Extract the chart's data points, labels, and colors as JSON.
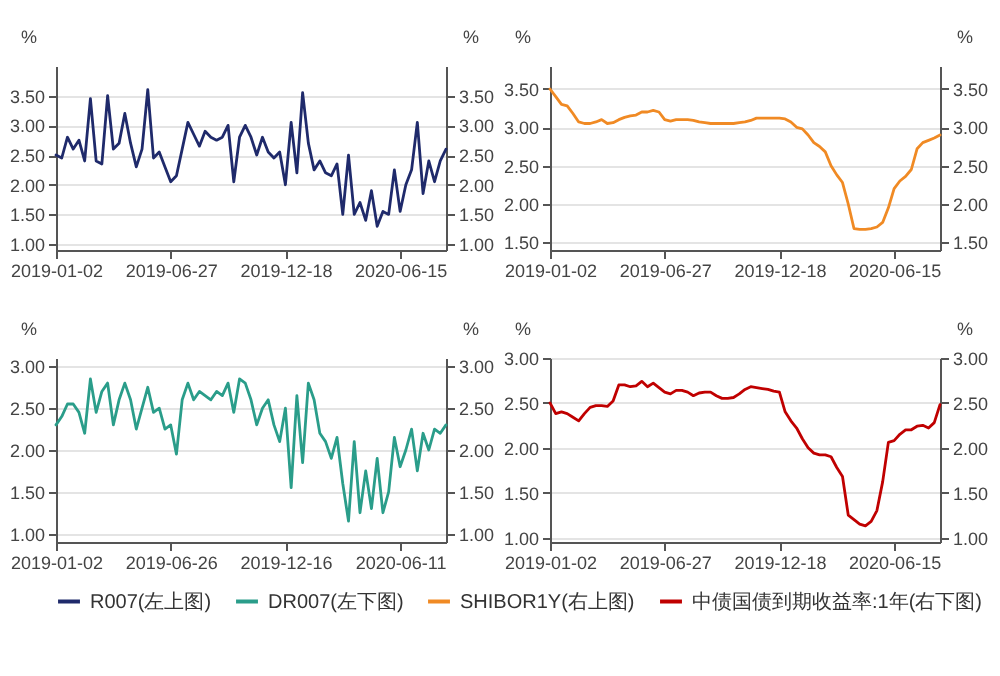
{
  "chart_data": [
    {
      "type": "line",
      "categories": [
        "2019-01-02",
        null,
        null,
        null,
        null,
        null,
        null,
        null,
        null,
        null,
        null,
        null,
        null,
        null,
        null,
        null,
        null,
        null,
        null,
        null,
        "2019-06-27",
        null,
        null,
        null,
        null,
        null,
        null,
        null,
        null,
        null,
        null,
        null,
        null,
        null,
        null,
        null,
        null,
        null,
        null,
        null,
        "2019-12-18",
        null,
        null,
        null,
        null,
        null,
        null,
        null,
        null,
        null,
        null,
        null,
        null,
        null,
        null,
        null,
        null,
        null,
        null,
        null,
        "2020-06-15",
        null,
        null,
        null,
        null,
        null,
        null,
        null,
        null
      ],
      "series": [
        {
          "name": "R007(左上图)",
          "color": "#1f2a6b",
          "values": [
            2.5,
            2.45,
            2.8,
            2.6,
            2.75,
            2.4,
            3.45,
            2.4,
            2.35,
            3.5,
            2.6,
            2.7,
            3.2,
            2.7,
            2.3,
            2.6,
            3.6,
            2.45,
            2.55,
            2.3,
            2.05,
            2.15,
            2.6,
            3.05,
            2.85,
            2.65,
            2.9,
            2.8,
            2.75,
            2.8,
            3.0,
            2.05,
            2.8,
            3.0,
            2.8,
            2.5,
            2.8,
            2.55,
            2.45,
            2.55,
            2.0,
            3.05,
            2.2,
            3.55,
            2.7,
            2.25,
            2.4,
            2.2,
            2.15,
            2.35,
            1.5,
            2.5,
            1.5,
            1.7,
            1.4,
            1.9,
            1.3,
            1.55,
            1.5,
            2.25,
            1.55,
            2.0,
            2.25,
            3.05,
            1.85,
            2.4,
            2.05,
            2.4,
            2.6
          ]
        }
      ],
      "ylabel": "%",
      "y2label": "%",
      "ylim": [
        0.9,
        4.0
      ],
      "yticks": [
        {
          "value": 1,
          "label": "1.00"
        },
        {
          "value": 1.5,
          "label": "1.50"
        },
        {
          "value": 2,
          "label": "2.00"
        },
        {
          "value": 2.5,
          "label": "2.50"
        },
        {
          "value": 3,
          "label": "3.00"
        },
        {
          "value": 3.5,
          "label": "3.50"
        }
      ],
      "y2lim": [
        0.9,
        4.0
      ],
      "y2ticks": [
        {
          "value": 1,
          "label": "1.00"
        },
        {
          "value": 1.5,
          "label": "1.50"
        },
        {
          "value": 2,
          "label": "2.00"
        },
        {
          "value": 2.5,
          "label": "2.50"
        },
        {
          "value": 3,
          "label": "3.00"
        },
        {
          "value": 3.5,
          "label": "3.50"
        }
      ],
      "grid": "y",
      "legend": "bottom"
    },
    {
      "type": "line",
      "categories": [
        "2019-01-02",
        null,
        null,
        null,
        null,
        null,
        null,
        null,
        null,
        null,
        null,
        null,
        null,
        null,
        null,
        null,
        null,
        null,
        null,
        null,
        "2019-06-27",
        null,
        null,
        null,
        null,
        null,
        null,
        null,
        null,
        null,
        null,
        null,
        null,
        null,
        null,
        null,
        null,
        null,
        null,
        null,
        "2019-12-18",
        null,
        null,
        null,
        null,
        null,
        null,
        null,
        null,
        null,
        null,
        null,
        null,
        null,
        null,
        null,
        null,
        null,
        null,
        null,
        "2020-06-15",
        null,
        null,
        null,
        null,
        null,
        null,
        null,
        null
      ],
      "series": [
        {
          "name": "SHIBOR1Y(右上图)",
          "color": "#f08a24",
          "values": [
            3.5,
            3.4,
            3.3,
            3.28,
            3.18,
            3.07,
            3.05,
            3.05,
            3.07,
            3.1,
            3.05,
            3.06,
            3.1,
            3.13,
            3.15,
            3.16,
            3.2,
            3.2,
            3.22,
            3.2,
            3.1,
            3.08,
            3.1,
            3.1,
            3.1,
            3.09,
            3.07,
            3.06,
            3.05,
            3.05,
            3.05,
            3.05,
            3.05,
            3.06,
            3.07,
            3.09,
            3.12,
            3.12,
            3.12,
            3.12,
            3.12,
            3.11,
            3.07,
            3.0,
            2.98,
            2.9,
            2.8,
            2.75,
            2.68,
            2.5,
            2.38,
            2.28,
            2.0,
            1.68,
            1.67,
            1.67,
            1.68,
            1.7,
            1.76,
            1.95,
            2.2,
            2.3,
            2.36,
            2.45,
            2.72,
            2.8,
            2.83,
            2.86,
            2.9
          ]
        }
      ],
      "ylabel": "%",
      "y2label": "%",
      "ylim": [
        1.4,
        3.8
      ],
      "yticks": [
        {
          "value": 1.5,
          "label": "1.50"
        },
        {
          "value": 2,
          "label": "2.00"
        },
        {
          "value": 2.5,
          "label": "2.50"
        },
        {
          "value": 3,
          "label": "3.00"
        },
        {
          "value": 3.5,
          "label": "3.50"
        }
      ],
      "y2lim": [
        1.4,
        3.8
      ],
      "y2ticks": [
        {
          "value": 1.5,
          "label": "1.50"
        },
        {
          "value": 2,
          "label": "2.00"
        },
        {
          "value": 2.5,
          "label": "2.50"
        },
        {
          "value": 3,
          "label": "3.00"
        },
        {
          "value": 3.5,
          "label": "3.50"
        }
      ],
      "grid": "y",
      "legend": "bottom"
    },
    {
      "type": "line",
      "categories": [
        "2019-01-02",
        null,
        null,
        null,
        null,
        null,
        null,
        null,
        null,
        null,
        null,
        null,
        null,
        null,
        null,
        null,
        null,
        null,
        null,
        null,
        "2019-06-26",
        null,
        null,
        null,
        null,
        null,
        null,
        null,
        null,
        null,
        null,
        null,
        null,
        null,
        null,
        null,
        null,
        null,
        null,
        null,
        "2019-12-16",
        null,
        null,
        null,
        null,
        null,
        null,
        null,
        null,
        null,
        null,
        null,
        null,
        null,
        null,
        null,
        null,
        null,
        null,
        null,
        "2020-06-11",
        null,
        null,
        null,
        null,
        null,
        null,
        null,
        null
      ],
      "series": [
        {
          "name": "DR007(左下图)",
          "color": "#2a9d8a",
          "values": [
            2.3,
            2.4,
            2.55,
            2.55,
            2.45,
            2.2,
            2.85,
            2.45,
            2.7,
            2.8,
            2.3,
            2.6,
            2.8,
            2.6,
            2.25,
            2.5,
            2.75,
            2.45,
            2.5,
            2.25,
            2.3,
            1.95,
            2.6,
            2.8,
            2.6,
            2.7,
            2.65,
            2.6,
            2.7,
            2.65,
            2.8,
            2.45,
            2.85,
            2.8,
            2.6,
            2.3,
            2.5,
            2.6,
            2.3,
            2.1,
            2.5,
            1.55,
            2.65,
            1.85,
            2.8,
            2.6,
            2.2,
            2.1,
            1.9,
            2.15,
            1.6,
            1.15,
            2.1,
            1.25,
            1.75,
            1.3,
            1.9,
            1.25,
            1.5,
            2.15,
            1.8,
            2.0,
            2.25,
            1.75,
            2.2,
            2.0,
            2.25,
            2.2,
            2.3
          ]
        }
      ],
      "ylabel": "%",
      "y2label": "%",
      "ylim": [
        0.9,
        3.1
      ],
      "yticks": [
        {
          "value": 1,
          "label": "1.00"
        },
        {
          "value": 1.5,
          "label": "1.50"
        },
        {
          "value": 2,
          "label": "2.00"
        },
        {
          "value": 2.5,
          "label": "2.50"
        },
        {
          "value": 3,
          "label": "3.00"
        }
      ],
      "y2lim": [
        0.9,
        3.1
      ],
      "y2ticks": [
        {
          "value": 1,
          "label": "1.00"
        },
        {
          "value": 1.5,
          "label": "1.50"
        },
        {
          "value": 2,
          "label": "2.00"
        },
        {
          "value": 2.5,
          "label": "2.50"
        },
        {
          "value": 3,
          "label": "3.00"
        }
      ],
      "grid": "y",
      "legend": "bottom"
    },
    {
      "type": "line",
      "categories": [
        "2019-01-02",
        null,
        null,
        null,
        null,
        null,
        null,
        null,
        null,
        null,
        null,
        null,
        null,
        null,
        null,
        null,
        null,
        null,
        null,
        null,
        "2019-06-27",
        null,
        null,
        null,
        null,
        null,
        null,
        null,
        null,
        null,
        null,
        null,
        null,
        null,
        null,
        null,
        null,
        null,
        null,
        null,
        "2019-12-18",
        null,
        null,
        null,
        null,
        null,
        null,
        null,
        null,
        null,
        null,
        null,
        null,
        null,
        null,
        null,
        null,
        null,
        null,
        null,
        "2020-06-15",
        null,
        null,
        null,
        null,
        null,
        null,
        null,
        null
      ],
      "series": [
        {
          "name": "中债国债到期收益率:1年(右下图)",
          "color": "#c00000",
          "values": [
            2.5,
            2.38,
            2.4,
            2.38,
            2.34,
            2.3,
            2.38,
            2.45,
            2.47,
            2.47,
            2.46,
            2.52,
            2.7,
            2.7,
            2.68,
            2.69,
            2.74,
            2.68,
            2.72,
            2.67,
            2.62,
            2.6,
            2.64,
            2.64,
            2.62,
            2.58,
            2.61,
            2.62,
            2.62,
            2.58,
            2.55,
            2.55,
            2.56,
            2.6,
            2.65,
            2.68,
            2.67,
            2.66,
            2.65,
            2.63,
            2.62,
            2.4,
            2.3,
            2.22,
            2.1,
            2.0,
            1.94,
            1.92,
            1.92,
            1.9,
            1.78,
            1.68,
            1.25,
            1.2,
            1.15,
            1.13,
            1.18,
            1.3,
            1.62,
            2.06,
            2.08,
            2.15,
            2.2,
            2.2,
            2.24,
            2.25,
            2.22,
            2.28,
            2.48
          ]
        }
      ],
      "ylabel": "%",
      "y2label": "%",
      "ylim": [
        0.95,
        3.0
      ],
      "yticks": [
        {
          "value": 1,
          "label": "1.00"
        },
        {
          "value": 1.5,
          "label": "1.50"
        },
        {
          "value": 2,
          "label": "2.00"
        },
        {
          "value": 2.5,
          "label": "2.50"
        },
        {
          "value": 3,
          "label": "3.00"
        }
      ],
      "y2lim": [
        0.95,
        3.0
      ],
      "y2ticks": [
        {
          "value": 1,
          "label": "1.00"
        },
        {
          "value": 1.5,
          "label": "1.50"
        },
        {
          "value": 2,
          "label": "2.00"
        },
        {
          "value": 2.5,
          "label": "2.50"
        },
        {
          "value": 3,
          "label": "3.00"
        }
      ],
      "grid": "y",
      "legend": "bottom"
    }
  ]
}
